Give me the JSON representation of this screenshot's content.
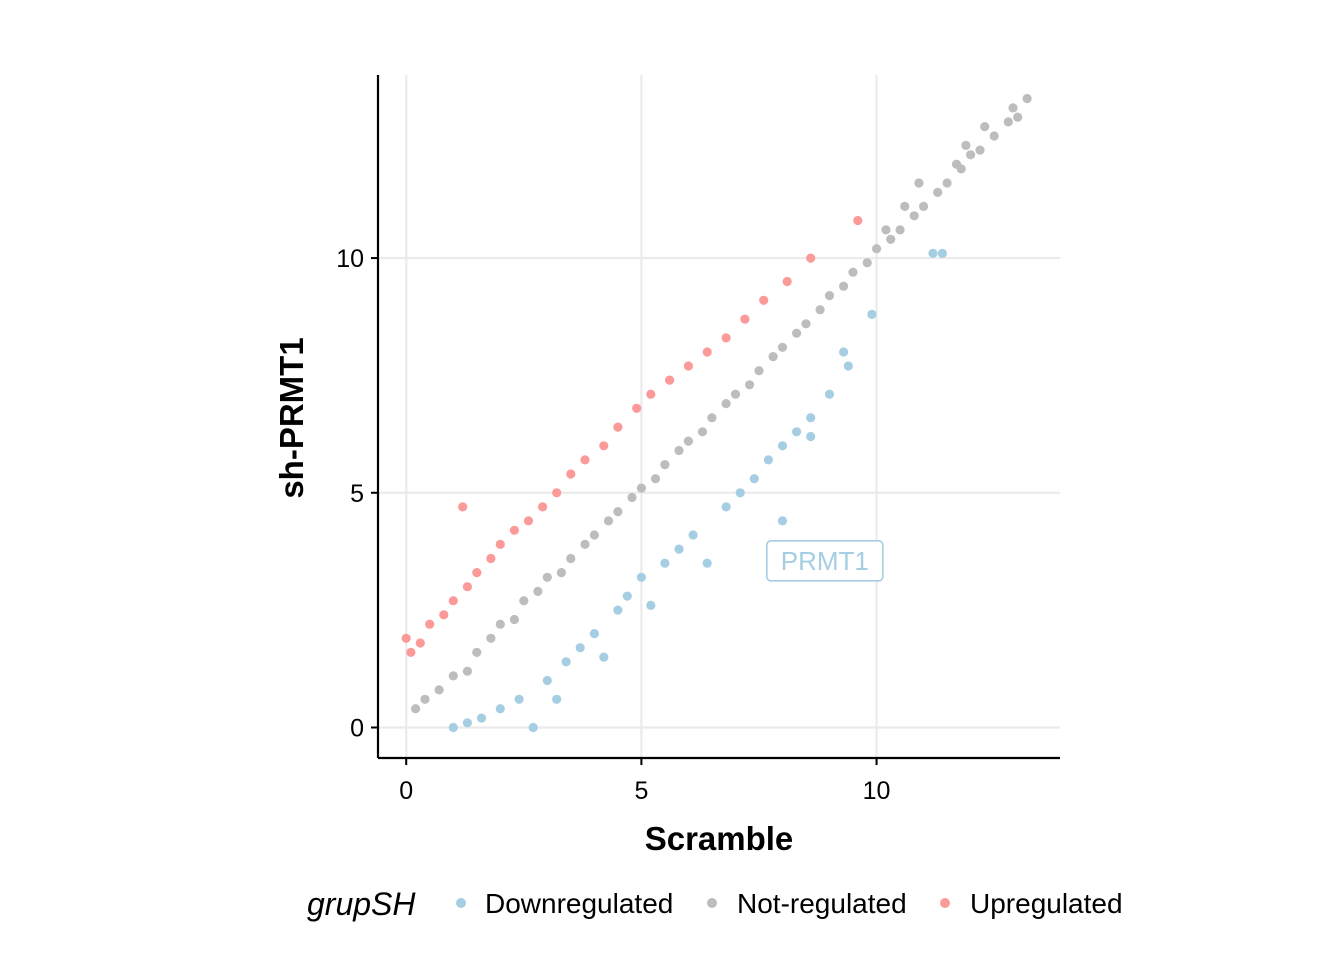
{
  "chart_data": {
    "type": "scatter",
    "title": "",
    "xlabel": "Scramble",
    "ylabel": "sh-PRMT1",
    "xlim": [
      -0.6,
      13.9
    ],
    "ylim": [
      -0.65,
      13.9
    ],
    "x_ticks": [
      "0",
      "5",
      "10"
    ],
    "y_ticks": [
      "0",
      "5",
      "10"
    ],
    "x_tick_values": [
      0,
      5,
      10
    ],
    "y_tick_values": [
      0,
      5,
      10
    ],
    "grid": true,
    "legend": {
      "title": "grupSH",
      "position": "bottom",
      "entries": [
        "Downregulated",
        "Not-regulated",
        "Upregulated"
      ]
    },
    "colors": {
      "Downregulated": "#a6cee3",
      "Not-regulated": "#bdbdbd",
      "Upregulated": "#fb9a99",
      "grid": "#ebebeb",
      "axis": "#000000"
    },
    "annotations": [
      {
        "text": "PRMT1",
        "x": 8.9,
        "y": 3.55,
        "series": "Downregulated"
      }
    ],
    "series": [
      {
        "name": "Not-regulated",
        "points": [
          [
            0.2,
            0.4
          ],
          [
            0.4,
            0.6
          ],
          [
            0.7,
            0.8
          ],
          [
            1.0,
            1.1
          ],
          [
            1.3,
            1.2
          ],
          [
            1.5,
            1.6
          ],
          [
            1.8,
            1.9
          ],
          [
            2.0,
            2.2
          ],
          [
            2.3,
            2.3
          ],
          [
            2.5,
            2.7
          ],
          [
            2.8,
            2.9
          ],
          [
            3.0,
            3.2
          ],
          [
            3.3,
            3.3
          ],
          [
            3.5,
            3.6
          ],
          [
            3.8,
            3.9
          ],
          [
            4.0,
            4.1
          ],
          [
            4.3,
            4.4
          ],
          [
            4.5,
            4.6
          ],
          [
            4.8,
            4.9
          ],
          [
            5.0,
            5.1
          ],
          [
            5.3,
            5.3
          ],
          [
            5.5,
            5.6
          ],
          [
            5.8,
            5.9
          ],
          [
            6.0,
            6.1
          ],
          [
            6.3,
            6.3
          ],
          [
            6.5,
            6.6
          ],
          [
            6.8,
            6.9
          ],
          [
            7.0,
            7.1
          ],
          [
            7.3,
            7.3
          ],
          [
            7.5,
            7.6
          ],
          [
            7.8,
            7.9
          ],
          [
            8.0,
            8.1
          ],
          [
            8.3,
            8.4
          ],
          [
            8.5,
            8.6
          ],
          [
            8.8,
            8.9
          ],
          [
            9.0,
            9.2
          ],
          [
            9.3,
            9.4
          ],
          [
            9.5,
            9.7
          ],
          [
            9.8,
            9.9
          ],
          [
            10.0,
            10.2
          ],
          [
            10.3,
            10.4
          ],
          [
            10.5,
            10.6
          ],
          [
            10.8,
            10.9
          ],
          [
            11.0,
            11.1
          ],
          [
            11.3,
            11.4
          ],
          [
            11.5,
            11.6
          ],
          [
            11.8,
            11.9
          ],
          [
            12.0,
            12.2
          ],
          [
            12.2,
            12.3
          ],
          [
            12.5,
            12.6
          ],
          [
            12.8,
            12.9
          ],
          [
            13.0,
            13.0
          ],
          [
            13.2,
            13.4
          ],
          [
            12.9,
            13.2
          ],
          [
            12.3,
            12.8
          ],
          [
            11.9,
            12.4
          ],
          [
            11.7,
            12.0
          ],
          [
            10.9,
            11.6
          ],
          [
            10.6,
            11.1
          ],
          [
            10.2,
            10.6
          ]
        ]
      },
      {
        "name": "Upregulated",
        "points": [
          [
            0.0,
            1.9
          ],
          [
            0.1,
            1.6
          ],
          [
            0.3,
            1.8
          ],
          [
            0.5,
            2.2
          ],
          [
            0.8,
            2.4
          ],
          [
            1.0,
            2.7
          ],
          [
            1.3,
            3.0
          ],
          [
            1.5,
            3.3
          ],
          [
            1.8,
            3.6
          ],
          [
            2.0,
            3.9
          ],
          [
            2.3,
            4.2
          ],
          [
            2.6,
            4.4
          ],
          [
            2.9,
            4.7
          ],
          [
            3.2,
            5.0
          ],
          [
            3.5,
            5.4
          ],
          [
            3.8,
            5.7
          ],
          [
            4.2,
            6.0
          ],
          [
            4.5,
            6.4
          ],
          [
            4.9,
            6.8
          ],
          [
            5.2,
            7.1
          ],
          [
            5.6,
            7.4
          ],
          [
            6.0,
            7.7
          ],
          [
            6.4,
            8.0
          ],
          [
            6.8,
            8.3
          ],
          [
            7.2,
            8.7
          ],
          [
            7.6,
            9.1
          ],
          [
            8.1,
            9.5
          ],
          [
            8.6,
            10.0
          ],
          [
            9.6,
            10.8
          ],
          [
            1.2,
            4.7
          ]
        ]
      },
      {
        "name": "Downregulated",
        "points": [
          [
            1.0,
            0.0
          ],
          [
            1.3,
            0.1
          ],
          [
            1.6,
            0.2
          ],
          [
            2.0,
            0.4
          ],
          [
            2.4,
            0.6
          ],
          [
            2.7,
            0.0
          ],
          [
            3.0,
            1.0
          ],
          [
            3.2,
            0.6
          ],
          [
            3.4,
            1.4
          ],
          [
            3.7,
            1.7
          ],
          [
            4.0,
            2.0
          ],
          [
            4.2,
            1.5
          ],
          [
            4.5,
            2.5
          ],
          [
            4.7,
            2.8
          ],
          [
            5.0,
            3.2
          ],
          [
            5.2,
            2.6
          ],
          [
            5.5,
            3.5
          ],
          [
            5.8,
            3.8
          ],
          [
            6.1,
            4.1
          ],
          [
            6.4,
            3.5
          ],
          [
            6.8,
            4.7
          ],
          [
            7.1,
            5.0
          ],
          [
            7.4,
            5.3
          ],
          [
            7.7,
            5.7
          ],
          [
            8.0,
            6.0
          ],
          [
            8.3,
            6.3
          ],
          [
            8.6,
            6.6
          ],
          [
            9.0,
            7.1
          ],
          [
            9.4,
            7.7
          ],
          [
            9.9,
            8.8
          ],
          [
            11.2,
            10.1
          ],
          [
            11.4,
            10.1
          ],
          [
            8.0,
            4.4
          ],
          [
            8.6,
            6.2
          ],
          [
            9.3,
            8.0
          ]
        ]
      }
    ]
  }
}
